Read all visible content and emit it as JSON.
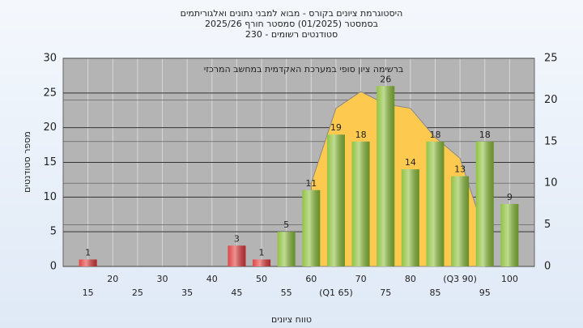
{
  "chart_data": {
    "type": "bar",
    "title": "היסטוגרמת ציונים בקורס - מבוא למבני נתונים ואלגוריתמים",
    "subtitle": [
      "בסמסטר  (01/2025)  סמסטר חורף 2025/26",
      "סטודנטים רשומים - 230"
    ],
    "annotation": "ברשימה ציון סופי במערכת האקדמית במחשב המרכזי",
    "x_label": "טווח ציונים",
    "y_label": "מספר סטודנטים",
    "categories": [
      "15",
      "20",
      "25",
      "30",
      "35",
      "40",
      "45",
      "50",
      "55",
      "60",
      "(Q1 65)",
      "70",
      "75",
      "80",
      "85",
      "(Q3 90)",
      "95",
      "100"
    ],
    "values": [
      1,
      null,
      null,
      null,
      null,
      null,
      3,
      1,
      5,
      11,
      19,
      18,
      26,
      14,
      18,
      13,
      18,
      9
    ],
    "colors": [
      "#e03a3a",
      null,
      null,
      null,
      null,
      null,
      "#e03a3a",
      "#e03a3a",
      "#8cbf3a",
      "#8cbf3a",
      "#8cbf3a",
      "#8cbf3a",
      "#8cbf3a",
      "#8cbf3a",
      "#8cbf3a",
      "#8cbf3a",
      "#8cbf3a",
      "#8cbf3a"
    ],
    "area": {
      "axis": "y2",
      "color": "#fdc94e",
      "values": [
        null,
        null,
        null,
        null,
        null,
        null,
        null,
        null,
        null,
        10,
        19,
        21,
        19.5,
        19,
        15.5,
        13,
        4,
        null
      ]
    },
    "ylim": [
      0,
      30
    ],
    "yticks": [
      0,
      5,
      10,
      15,
      20,
      25,
      30
    ],
    "y2lim": [
      0,
      25
    ],
    "y2ticks": [
      0,
      5,
      10,
      15,
      20,
      25
    ],
    "grid": true
  }
}
